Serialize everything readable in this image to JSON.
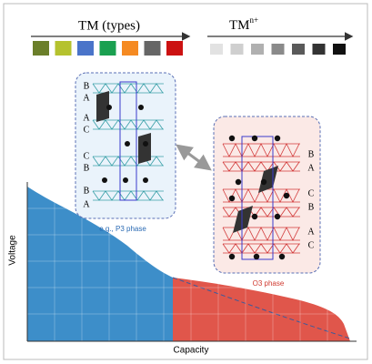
{
  "legend": {
    "tm_types": "TM (types)",
    "tm_ions": {
      "base": "TM",
      "sup": "n+"
    }
  },
  "p3_phase": {
    "layers": [
      "B",
      "A",
      "A",
      "C",
      "C",
      "B",
      "B",
      "A"
    ],
    "caption": "e.g., P3 phase"
  },
  "o3_phase": {
    "layers": [
      "B",
      "A",
      "C",
      "B",
      "A",
      "C"
    ],
    "caption": "O3 phase"
  },
  "axes": {
    "y_label": "Voltage",
    "x_label": "Capacity"
  }
}
